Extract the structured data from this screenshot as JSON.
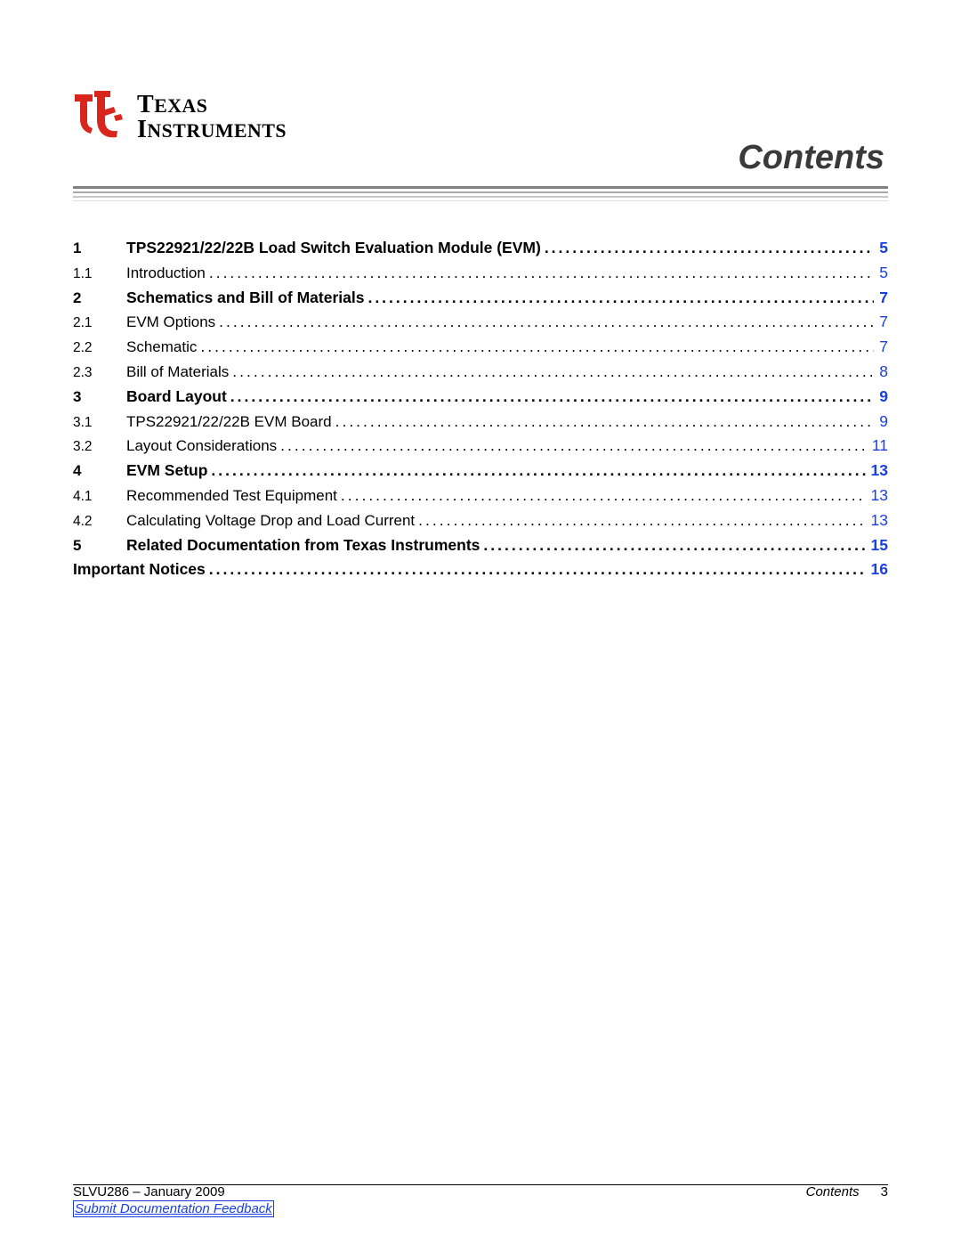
{
  "logo": {
    "line1": "Texas",
    "line2": "Instruments",
    "brand_red": "#d9261c"
  },
  "section_title": "Contents",
  "colors": {
    "link": "#1a3fe0",
    "rule_dark": "#808080",
    "rule_mid": "#a8a8a8",
    "rule_light": "#c7c7c7",
    "rule_faint": "#dedede",
    "text": "#000000",
    "title_gray": "#3a3a3a"
  },
  "toc": [
    {
      "num": "1",
      "title": "TPS22921/22/22B Load Switch Evaluation Module (EVM)",
      "page": "5",
      "bold": true,
      "link": true
    },
    {
      "num": "1.1",
      "title": "Introduction",
      "page": "5",
      "bold": false,
      "link": true
    },
    {
      "num": "2",
      "title": "Schematics and Bill of Materials",
      "page": "7",
      "bold": true,
      "link": true
    },
    {
      "num": "2.1",
      "title": "EVM Options",
      "page": "7",
      "bold": false,
      "link": true
    },
    {
      "num": "2.2",
      "title": "Schematic",
      "page": "7",
      "bold": false,
      "link": true
    },
    {
      "num": "2.3",
      "title": "Bill of Materials",
      "page": "8",
      "bold": false,
      "link": true
    },
    {
      "num": "3",
      "title": "Board Layout",
      "page": "9",
      "bold": true,
      "link": true
    },
    {
      "num": "3.1",
      "title": "TPS22921/22/22B EVM Board",
      "page": "9",
      "bold": false,
      "link": true
    },
    {
      "num": "3.2",
      "title": "Layout Considerations",
      "page": "11",
      "bold": false,
      "link": true
    },
    {
      "num": "4",
      "title": "EVM Setup",
      "page": "13",
      "bold": true,
      "link": true
    },
    {
      "num": "4.1",
      "title": "Recommended Test Equipment",
      "page": "13",
      "bold": false,
      "link": true
    },
    {
      "num": "4.2",
      "title": "Calculating Voltage Drop and Load Current",
      "page": "13",
      "bold": false,
      "link": true
    },
    {
      "num": "5",
      "title": "Related Documentation from Texas Instruments",
      "page": "15",
      "bold": true,
      "link": true
    },
    {
      "num": "",
      "title": "Important Notices",
      "page": "16",
      "bold": true,
      "link": true,
      "special": true
    }
  ],
  "footer": {
    "doc_id": "SLVU286 – January 2009",
    "section": "Contents",
    "page_num": "3",
    "feedback": "Submit Documentation Feedback"
  }
}
